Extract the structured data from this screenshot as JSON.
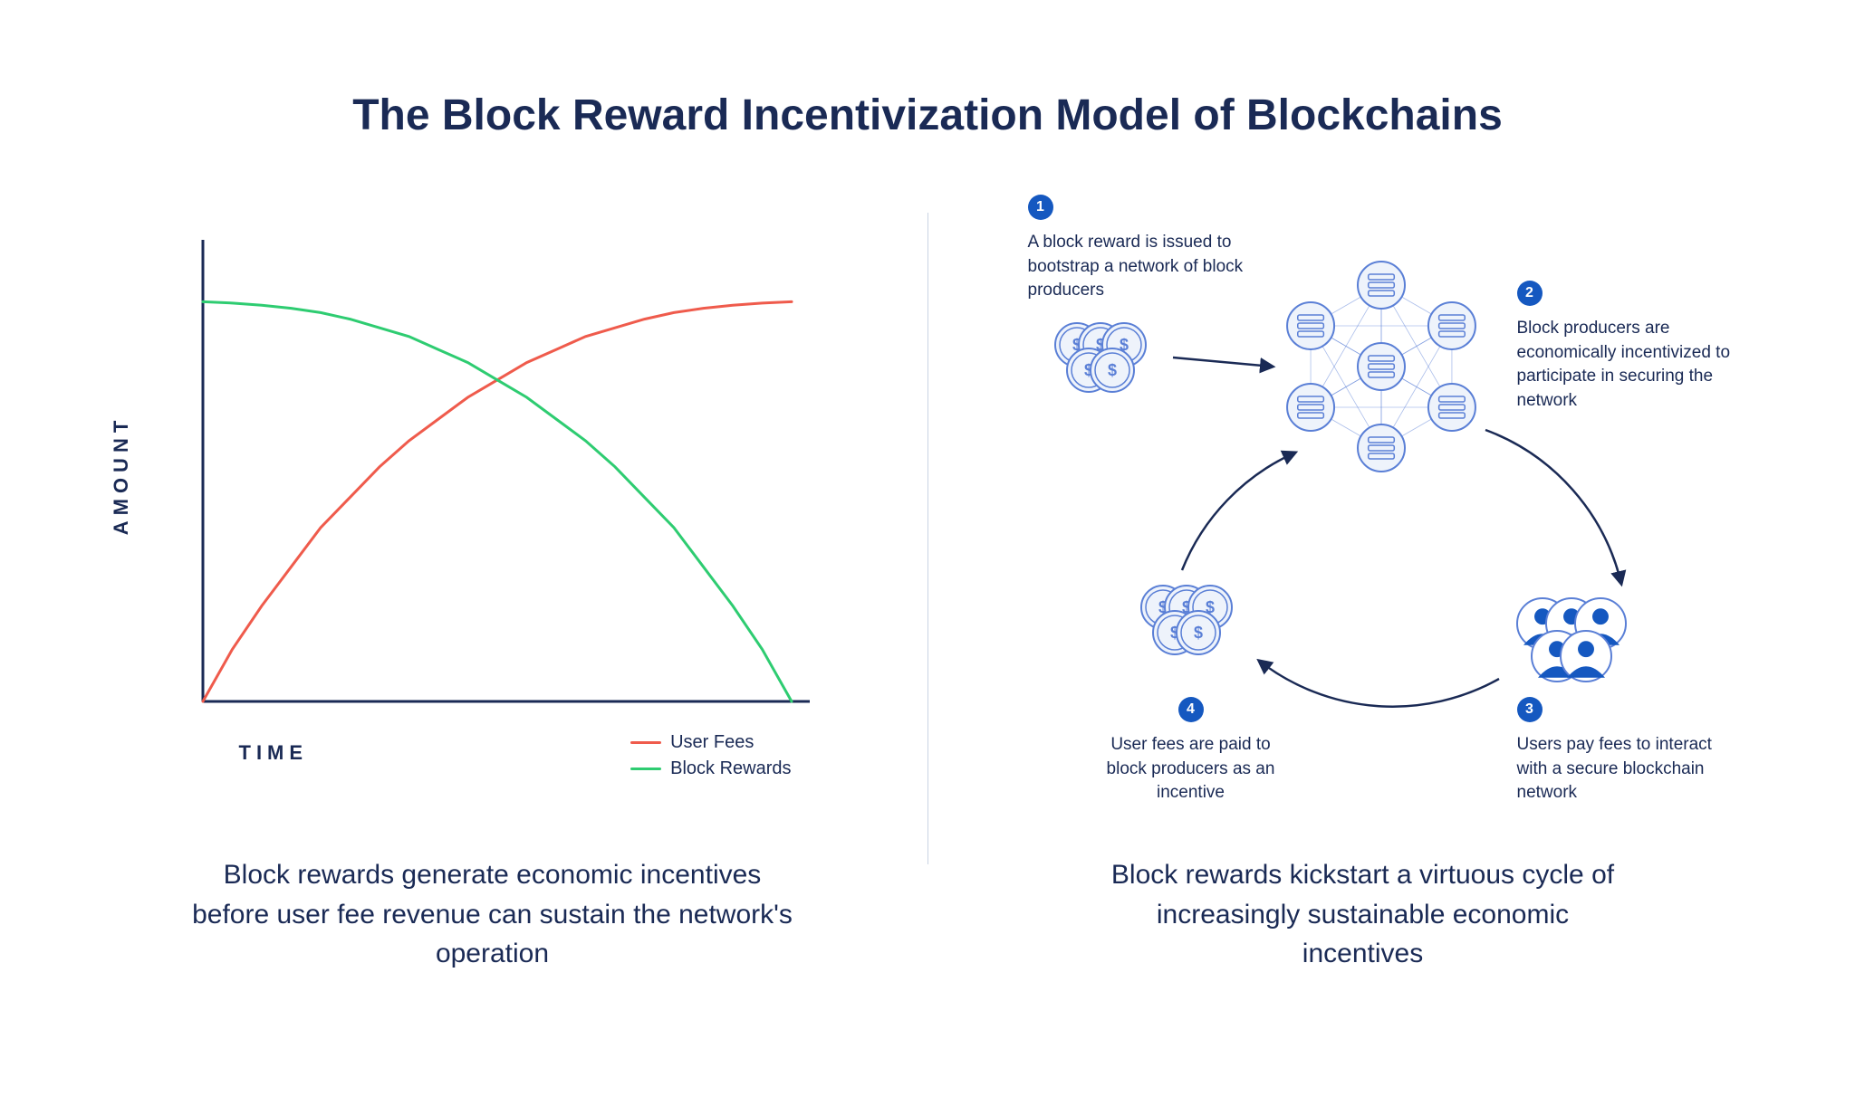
{
  "title": "The Block Reward Incentivization Model of Blockchains",
  "colors": {
    "background": "#ffffff",
    "text": "#1a2a55",
    "axis": "#1a2a55",
    "divider": "#c9d3e3",
    "badge_bg": "#1558c0",
    "badge_text": "#ffffff",
    "node_stroke": "#5a7fd6",
    "node_fill_light": "#eef3fb",
    "user_fill": "#1558c0"
  },
  "chart": {
    "type": "line",
    "x_label": "TIME",
    "y_label": "AMOUNT",
    "axis_color": "#1a2a55",
    "axis_width": 3,
    "background_color": "#ffffff",
    "line_width": 3,
    "xlim": [
      0,
      1
    ],
    "ylim": [
      0,
      1
    ],
    "grid": false,
    "series": [
      {
        "name": "User Fees",
        "color": "#ef5b4c",
        "points": [
          [
            0.0,
            0.0
          ],
          [
            0.05,
            0.12
          ],
          [
            0.1,
            0.22
          ],
          [
            0.15,
            0.31
          ],
          [
            0.2,
            0.4
          ],
          [
            0.25,
            0.47
          ],
          [
            0.3,
            0.54
          ],
          [
            0.35,
            0.6
          ],
          [
            0.4,
            0.65
          ],
          [
            0.45,
            0.7
          ],
          [
            0.5,
            0.74
          ],
          [
            0.55,
            0.78
          ],
          [
            0.6,
            0.81
          ],
          [
            0.65,
            0.84
          ],
          [
            0.7,
            0.86
          ],
          [
            0.75,
            0.88
          ],
          [
            0.8,
            0.895
          ],
          [
            0.85,
            0.905
          ],
          [
            0.9,
            0.912
          ],
          [
            0.95,
            0.917
          ],
          [
            1.0,
            0.92
          ]
        ]
      },
      {
        "name": "Block Rewards",
        "color": "#2ecc71",
        "points": [
          [
            0.0,
            0.92
          ],
          [
            0.05,
            0.917
          ],
          [
            0.1,
            0.912
          ],
          [
            0.15,
            0.905
          ],
          [
            0.2,
            0.895
          ],
          [
            0.25,
            0.88
          ],
          [
            0.3,
            0.86
          ],
          [
            0.35,
            0.84
          ],
          [
            0.4,
            0.81
          ],
          [
            0.45,
            0.78
          ],
          [
            0.5,
            0.74
          ],
          [
            0.55,
            0.7
          ],
          [
            0.6,
            0.65
          ],
          [
            0.65,
            0.6
          ],
          [
            0.7,
            0.54
          ],
          [
            0.75,
            0.47
          ],
          [
            0.8,
            0.4
          ],
          [
            0.85,
            0.31
          ],
          [
            0.9,
            0.22
          ],
          [
            0.95,
            0.12
          ],
          [
            1.0,
            0.0
          ]
        ]
      }
    ],
    "legend": {
      "position": "bottom-right",
      "items": [
        "User Fees",
        "Block Rewards"
      ]
    }
  },
  "left_caption": "Block rewards generate economic incentives before user fee revenue can sustain the network's operation",
  "right_caption": "Block rewards kickstart a virtuous cycle of increasingly sustainable economic incentives",
  "cycle": {
    "type": "flowchart",
    "steps": [
      {
        "n": "1",
        "text": "A block reward is issued to bootstrap a network of block producers"
      },
      {
        "n": "2",
        "text": "Block producers are economically incentivized to participate in securing the network"
      },
      {
        "n": "3",
        "text": "Users pay fees to interact with a secure blockchain network"
      },
      {
        "n": "4",
        "text": "User fees are paid to block producers as an incentive"
      }
    ],
    "arrow_color": "#1a2a55",
    "arrow_width": 2.5,
    "nodes": {
      "coins": {
        "kind": "coin-cluster",
        "stroke": "#5a7fd6",
        "fill": "#eef3fb",
        "symbol": "$",
        "count": 5
      },
      "network": {
        "kind": "server-mesh",
        "stroke": "#5a7fd6",
        "fill": "#eef3fb",
        "node_count": 7
      },
      "users": {
        "kind": "user-cluster",
        "stroke": "#5a7fd6",
        "fill": "#1558c0",
        "count": 5
      }
    }
  }
}
